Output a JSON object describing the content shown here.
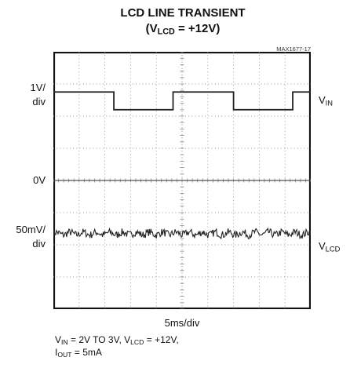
{
  "chart_data": {
    "type": "line",
    "title": "LCD LINE TRANSIENT",
    "subtitle": {
      "prefix": "(V",
      "sub": "LCD",
      "suffix": " = +12V)"
    },
    "reference_id": "MAX1677-17",
    "xlabel": "5ms/div",
    "x_divisions": 10,
    "y_divisions": 8,
    "x_unit": "div",
    "xlim": [
      0,
      10
    ],
    "ylim": [
      -4,
      4
    ],
    "grid": true,
    "left_labels": {
      "scale_top_1": "1V/",
      "scale_top_2": "div",
      "zero": "0V",
      "scale_bottom_1": "50mV/",
      "scale_bottom_2": "div"
    },
    "series": [
      {
        "name": {
          "main": "V",
          "sub": "IN"
        },
        "color": "#222222",
        "x": [
          0,
          2.35,
          2.35,
          4.65,
          4.65,
          7.0,
          7.0,
          9.3,
          9.3,
          10
        ],
        "y": [
          2.75,
          2.75,
          2.2,
          2.2,
          2.75,
          2.75,
          2.2,
          2.2,
          2.75,
          2.75
        ]
      },
      {
        "name": {
          "main": "V",
          "sub": "LCD"
        },
        "color": "#222222",
        "baseline": -1.65,
        "noise": 0.12
      }
    ],
    "zero_trace": {
      "y": 0,
      "color": "#555555"
    },
    "caption": {
      "line1": {
        "a": "V",
        "a_sub": "IN",
        "b": " = 2V TO 3V, V",
        "b_sub": "LCD",
        "c": " = +12V,"
      },
      "line2": {
        "a": "I",
        "a_sub": "OUT",
        "b": " = 5mA"
      }
    }
  }
}
